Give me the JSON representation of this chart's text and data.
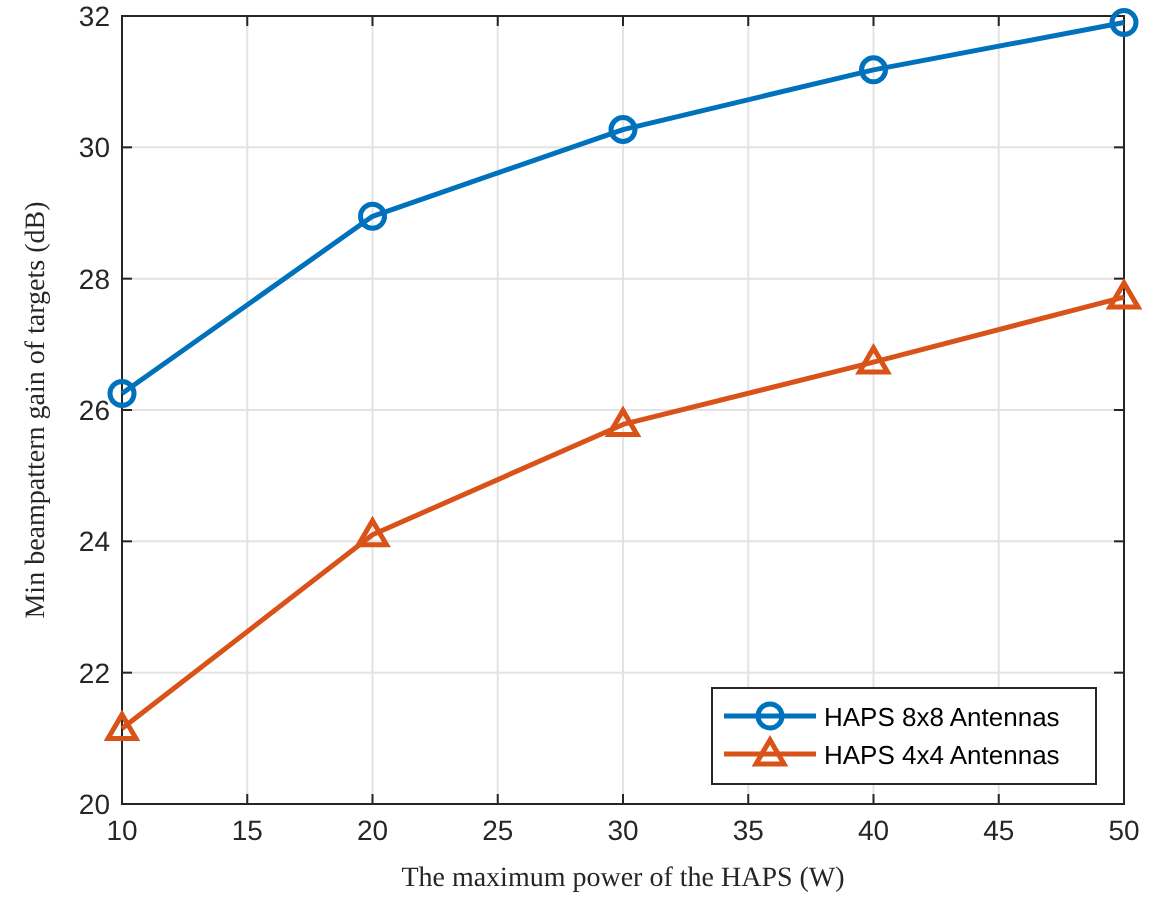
{
  "chart_data": {
    "type": "line",
    "xlabel": "The maximum power of the HAPS (W)",
    "ylabel": "Min beampattern gain of targets (dB)",
    "x": [
      10,
      20,
      30,
      40,
      50
    ],
    "series": [
      {
        "name": "HAPS 8x8 Antennas",
        "color": "#0072bd",
        "marker": "circle",
        "values": [
          26.25,
          28.95,
          30.27,
          31.18,
          31.9
        ]
      },
      {
        "name": "HAPS 4x4 Antennas",
        "color": "#d95319",
        "marker": "triangle",
        "values": [
          21.15,
          24.1,
          25.78,
          26.73,
          27.72
        ]
      }
    ],
    "xlim": [
      10,
      50
    ],
    "xticks": [
      10,
      15,
      20,
      25,
      30,
      35,
      40,
      45,
      50
    ],
    "ylim": [
      20,
      32
    ],
    "yticks": [
      20,
      22,
      24,
      26,
      28,
      30,
      32
    ],
    "grid": true,
    "legend": "bottom right",
    "line_style": "solid"
  }
}
